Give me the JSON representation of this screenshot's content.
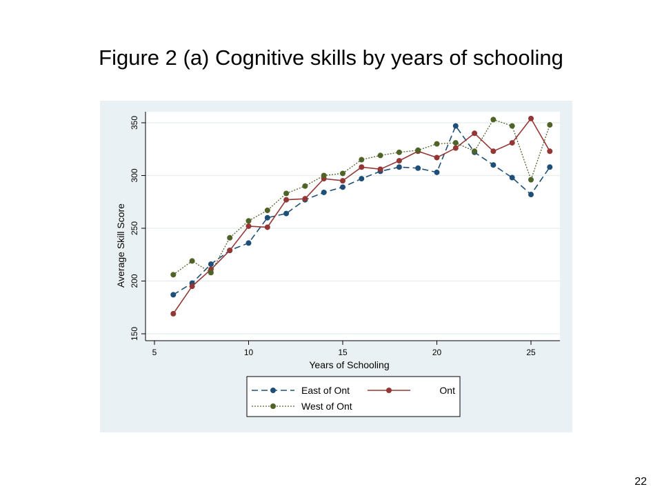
{
  "slide": {
    "title": "Figure 2 (a) Cognitive skills by years of schooling",
    "page_number": "22"
  },
  "chart_data": {
    "type": "line",
    "xlabel": "Years of Schooling",
    "ylabel": "Average Skill Score",
    "xlim": [
      5,
      26
    ],
    "ylim": [
      150,
      360
    ],
    "x_ticks": [
      5,
      10,
      15,
      20,
      25
    ],
    "y_ticks": [
      150,
      200,
      250,
      300,
      350
    ],
    "grid": "horizontal",
    "legend_position": "bottom",
    "x": [
      6,
      7,
      8,
      9,
      10,
      11,
      12,
      13,
      14,
      15,
      16,
      17,
      18,
      19,
      20,
      21,
      22,
      23,
      24,
      25,
      26
    ],
    "series": [
      {
        "name": "East of Ont",
        "color": "#1f4e79",
        "line_style": "dashed",
        "values": [
          187,
          198,
          216,
          229,
          236,
          260,
          264,
          277,
          284,
          289,
          297,
          304,
          308,
          307,
          303,
          347,
          322,
          310,
          298,
          282,
          308
        ]
      },
      {
        "name": "Ont",
        "color": "#943634",
        "line_style": "solid",
        "values": [
          169,
          195,
          211,
          229,
          252,
          251,
          277,
          278,
          297,
          295,
          308,
          306,
          314,
          323,
          317,
          326,
          340,
          323,
          331,
          354,
          323
        ]
      },
      {
        "name": "West of Ont",
        "color": "#4f6228",
        "line_style": "dotted",
        "values": [
          206,
          219,
          208,
          241,
          257,
          267,
          283,
          290,
          300,
          302,
          315,
          319,
          322,
          324,
          330,
          331,
          323,
          353,
          347,
          296,
          348
        ]
      }
    ]
  }
}
